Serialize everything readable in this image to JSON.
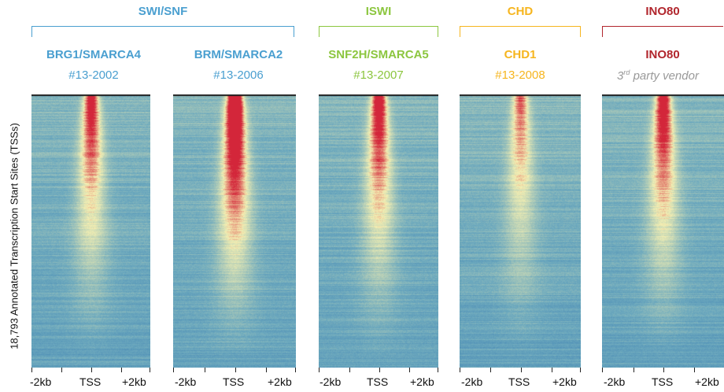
{
  "y_axis_label": "18,793 Annotated Transcription Start Sites (TSSs)",
  "families": [
    {
      "name": "SWI/SNF",
      "color": "#4a9fd0"
    },
    {
      "name": "ISWI",
      "color": "#8cc63f"
    },
    {
      "name": "CHD",
      "color": "#f6b51e"
    },
    {
      "name": "INO80",
      "color": "#b1262d"
    }
  ],
  "panels": [
    {
      "protein": "BRG1/SMARCA4",
      "catalog": "#13-2002",
      "color": "#4a9fd0",
      "signal": 0.55
    },
    {
      "protein": "BRM/SMARCA2",
      "catalog": "#13-2006",
      "color": "#4a9fd0",
      "signal": 0.9
    },
    {
      "protein": "SNF2H/SMARCA5",
      "catalog": "#13-2007",
      "color": "#8cc63f",
      "signal": 0.6
    },
    {
      "protein": "CHD1",
      "catalog": "#13-2008",
      "color": "#f6b51e",
      "signal": 0.35
    },
    {
      "protein": "INO80",
      "catalog": "3rd party vendor",
      "catalog_sup": "rd",
      "color": "#b1262d",
      "signal": 0.6,
      "catalog_gray": true
    }
  ],
  "x_ticks": [
    "-2kb",
    "TSS",
    "+2kb"
  ],
  "colors": {
    "low": "#2a6fae",
    "mid": "#f4efb2",
    "high": "#d3263a"
  }
}
